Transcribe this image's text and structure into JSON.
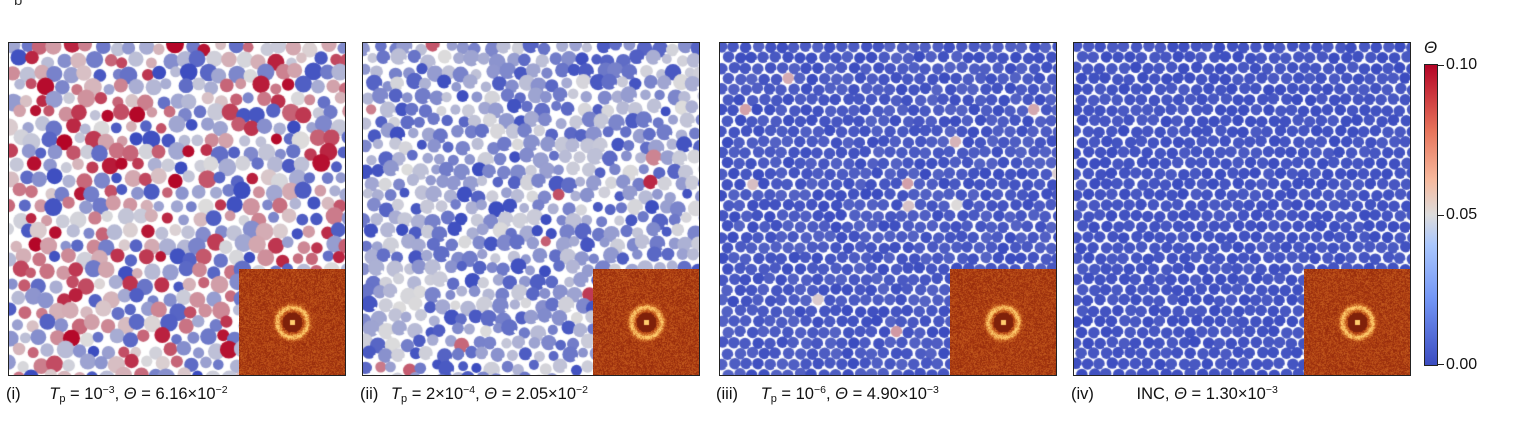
{
  "header_stub": "b",
  "panels": [
    {
      "label": "(i)",
      "prefix_sym": "T",
      "prefix_sub": "p",
      "prefix_mid": " = ",
      "base": "10",
      "exp": "−3",
      "theta_text": ", ",
      "theta_sym": "Θ",
      "theta_value": " = 6.16×10",
      "theta_exp": "−2",
      "mean_theta": 0.0616
    },
    {
      "label": "(ii)",
      "prefix_sym": "T",
      "prefix_sub": "p",
      "prefix_mid": " = ",
      "base": "2×10",
      "exp": "−4",
      "theta_text": ", ",
      "theta_sym": "Θ",
      "theta_value": " = 2.05×10",
      "theta_exp": "−2",
      "mean_theta": 0.0205
    },
    {
      "label": "(iii)",
      "prefix_sym": "T",
      "prefix_sub": "p",
      "prefix_mid": " = ",
      "base": "10",
      "exp": "−6",
      "theta_text": ", ",
      "theta_sym": "Θ",
      "theta_value": " = 4.90×10",
      "theta_exp": "−3",
      "mean_theta": 0.0049
    },
    {
      "label": "(iv)",
      "prefix_sym": "INC",
      "prefix_sub": "",
      "prefix_mid": "",
      "base": "",
      "exp": "",
      "theta_text": ", ",
      "theta_sym": "Θ",
      "theta_value": " = 1.30×10",
      "theta_exp": "−3",
      "mean_theta": 0.0013
    }
  ],
  "colorbar": {
    "title": "Θ",
    "ticks": [
      "0.10",
      "0.05",
      "0.00"
    ],
    "min": 0.0,
    "max": 0.1,
    "colors": {
      "low": "#3b4cc0",
      "mid": "#dddcdc",
      "high": "#b40426"
    }
  }
}
